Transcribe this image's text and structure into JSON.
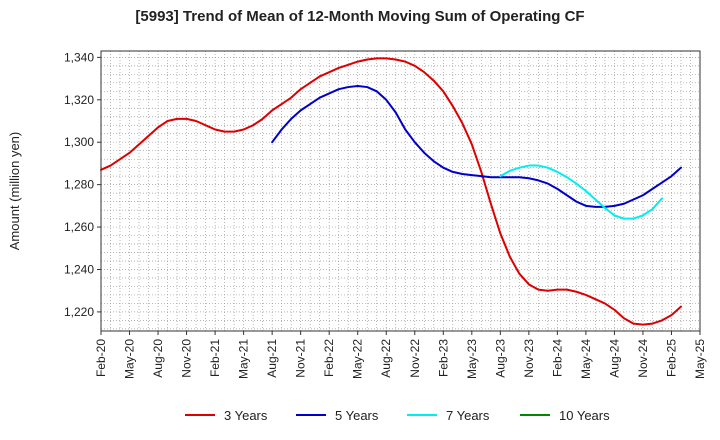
{
  "chart_data": {
    "type": "line",
    "title": "[5993]  Trend of Mean of 12-Month Moving Sum of Operating CF",
    "xlabel": "",
    "ylabel": "Amount (million yen)",
    "ylim": [
      1211,
      1343
    ],
    "yticks": [
      1220,
      1240,
      1260,
      1280,
      1300,
      1320,
      1340
    ],
    "ytick_labels": [
      "1,220",
      "1,240",
      "1,260",
      "1,280",
      "1,300",
      "1,320",
      "1,340"
    ],
    "xtick_labels": [
      "Feb-20",
      "May-20",
      "Aug-20",
      "Nov-20",
      "Feb-21",
      "May-21",
      "Aug-21",
      "Nov-21",
      "Feb-22",
      "May-22",
      "Aug-22",
      "Nov-22",
      "Feb-23",
      "May-23",
      "Aug-23",
      "Nov-23",
      "Feb-24",
      "May-24",
      "Aug-24",
      "Nov-24",
      "Feb-25",
      "May-25"
    ],
    "x_start": "Feb-20",
    "x_months": 63,
    "grid": true,
    "legend_position": "bottom",
    "series": [
      {
        "name": "3 Years",
        "color": "#dd0000",
        "start_month": 0,
        "values": [
          1287,
          1289,
          1292,
          1295,
          1299,
          1303,
          1307,
          1310,
          1311,
          1311,
          1310,
          1308,
          1306,
          1305,
          1305,
          1306,
          1308,
          1311,
          1315,
          1318,
          1321,
          1325,
          1328,
          1331,
          1333,
          1335,
          1336.5,
          1338,
          1339,
          1339.5,
          1339.5,
          1339,
          1338,
          1336,
          1333,
          1329,
          1324,
          1317,
          1309,
          1299,
          1286,
          1271,
          1257,
          1246,
          1238,
          1233,
          1230.5,
          1230,
          1230.5,
          1230.5,
          1229.5,
          1228,
          1226,
          1224,
          1221,
          1217,
          1214.5,
          1214,
          1214.5,
          1216,
          1218.5,
          1222.5
        ]
      },
      {
        "name": "5 Years",
        "color": "#0000cc",
        "start_month": 18,
        "values": [
          1300,
          1306,
          1311,
          1315,
          1318,
          1321,
          1323,
          1325,
          1326,
          1326.5,
          1326,
          1324,
          1320,
          1314,
          1306,
          1300,
          1295,
          1291,
          1288,
          1286,
          1285,
          1284.5,
          1284,
          1283.5,
          1283.5,
          1283.5,
          1283.5,
          1283,
          1282,
          1280.5,
          1278,
          1275,
          1272,
          1270,
          1269.5,
          1269.5,
          1270,
          1271,
          1273,
          1275,
          1278,
          1281,
          1284,
          1288
        ]
      },
      {
        "name": "7 Years",
        "color": "#00eeee",
        "start_month": 42,
        "values": [
          1284,
          1286.5,
          1288,
          1289,
          1289,
          1288,
          1286,
          1283.5,
          1280.5,
          1277,
          1273,
          1269,
          1265.5,
          1264,
          1264,
          1265.5,
          1268.5,
          1273.5
        ]
      },
      {
        "name": "10 Years",
        "color": "#008800",
        "start_month": 0,
        "values": []
      }
    ]
  }
}
